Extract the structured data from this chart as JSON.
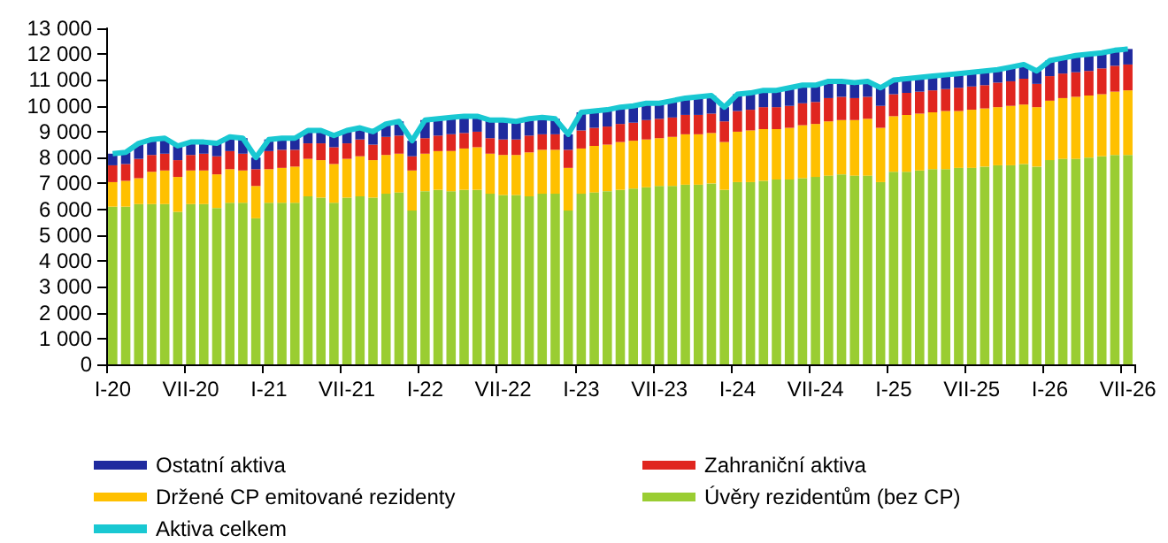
{
  "chart_data": {
    "type": "bar",
    "stacked": true,
    "grid": false,
    "legend": "bottom",
    "categories": [
      "I-20",
      null,
      null,
      null,
      null,
      null,
      "VII-20",
      null,
      null,
      null,
      null,
      null,
      "I-21",
      null,
      null,
      null,
      null,
      null,
      "VII-21",
      null,
      null,
      null,
      null,
      null,
      "I-22",
      null,
      null,
      null,
      null,
      null,
      "VII-22",
      null,
      null,
      null,
      null,
      null,
      "I-23",
      null,
      null,
      null,
      null,
      null,
      "VII-23",
      null,
      null,
      null,
      null,
      null,
      "I-24",
      null,
      null,
      null,
      null,
      null,
      "VII-24",
      null,
      null,
      null,
      null,
      null,
      "I-25",
      null,
      null,
      null,
      null,
      null,
      "VII-25",
      null,
      null,
      null,
      null,
      null,
      "I-26",
      null,
      null,
      null,
      null,
      null,
      "VII-26"
    ],
    "ylim": [
      0,
      13000
    ],
    "yticks": [
      0,
      {
        "value": 1000,
        "label": "1 000"
      },
      {
        "value": 2000,
        "label": "2 000"
      },
      {
        "value": 3000,
        "label": "3 000"
      },
      {
        "value": 4000,
        "label": "4 000"
      },
      {
        "value": 5000,
        "label": "5 000"
      },
      {
        "value": 6000,
        "label": "6 000"
      },
      {
        "value": 7000,
        "label": "7 000"
      },
      {
        "value": 8000,
        "label": "8 000"
      },
      {
        "value": 9000,
        "label": "9 000"
      },
      {
        "value": 10000,
        "label": "10 000"
      },
      {
        "value": 11000,
        "label": "11 000"
      },
      {
        "value": 12000,
        "label": "12 000"
      },
      {
        "value": 13000,
        "label": "13 000"
      }
    ],
    "series": [
      {
        "name": "Úvěry rezidentům (bez CP)",
        "color": "#9acd32",
        "values": [
          6100,
          6100,
          6200,
          6200,
          6200,
          5900,
          6200,
          6200,
          6050,
          6250,
          6250,
          5650,
          6250,
          6250,
          6250,
          6500,
          6450,
          6250,
          6450,
          6500,
          6450,
          6600,
          6650,
          5950,
          6700,
          6750,
          6700,
          6750,
          6750,
          6600,
          6550,
          6550,
          6500,
          6600,
          6600,
          5950,
          6600,
          6650,
          6700,
          6750,
          6800,
          6850,
          6900,
          6900,
          6950,
          6950,
          7000,
          6750,
          7050,
          7050,
          7100,
          7150,
          7150,
          7200,
          7250,
          7300,
          7350,
          7300,
          7300,
          7050,
          7450,
          7450,
          7500,
          7550,
          7550,
          7600,
          7600,
          7650,
          7700,
          7700,
          7750,
          7650,
          7900,
          7950,
          7950,
          8000,
          8050,
          8100,
          8100
        ]
      },
      {
        "name": "Držené CP emitované rezidenty",
        "color": "#ffc000",
        "values": [
          950,
          1000,
          1000,
          1250,
          1300,
          1350,
          1300,
          1300,
          1300,
          1300,
          1250,
          1250,
          1300,
          1350,
          1400,
          1450,
          1450,
          1500,
          1500,
          1550,
          1450,
          1500,
          1500,
          1550,
          1450,
          1500,
          1550,
          1600,
          1650,
          1550,
          1550,
          1550,
          1700,
          1700,
          1700,
          1650,
          1750,
          1800,
          1800,
          1850,
          1850,
          1850,
          1850,
          1900,
          1950,
          1950,
          1950,
          1850,
          1950,
          2000,
          2000,
          1950,
          2000,
          2050,
          2050,
          2100,
          2100,
          2150,
          2200,
          2100,
          2150,
          2200,
          2200,
          2200,
          2250,
          2200,
          2250,
          2250,
          2250,
          2300,
          2300,
          2300,
          2300,
          2350,
          2400,
          2400,
          2400,
          2450,
          2500
        ]
      },
      {
        "name": "Zahraniční aktiva",
        "color": "#e0261f",
        "values": [
          650,
          650,
          750,
          650,
          650,
          650,
          600,
          650,
          700,
          700,
          650,
          650,
          700,
          700,
          650,
          600,
          650,
          650,
          600,
          650,
          600,
          700,
          700,
          550,
          600,
          600,
          650,
          600,
          600,
          600,
          600,
          600,
          650,
          600,
          600,
          700,
          700,
          700,
          700,
          700,
          700,
          750,
          750,
          750,
          750,
          750,
          750,
          800,
          800,
          800,
          850,
          850,
          850,
          850,
          850,
          900,
          900,
          850,
          850,
          850,
          850,
          850,
          850,
          850,
          850,
          900,
          900,
          900,
          950,
          950,
          1000,
          900,
          950,
          950,
          950,
          950,
          1000,
          1000,
          1000
        ]
      },
      {
        "name": "Ostatní aktiva",
        "color": "#1f2a9e",
        "values": [
          450,
          450,
          600,
          600,
          600,
          550,
          500,
          450,
          500,
          550,
          600,
          450,
          450,
          450,
          450,
          500,
          500,
          450,
          500,
          450,
          500,
          500,
          550,
          600,
          700,
          650,
          650,
          650,
          600,
          700,
          750,
          700,
          650,
          650,
          600,
          600,
          700,
          650,
          650,
          650,
          650,
          650,
          600,
          650,
          650,
          700,
          700,
          550,
          650,
          650,
          650,
          650,
          700,
          700,
          650,
          650,
          600,
          600,
          600,
          700,
          550,
          550,
          550,
          550,
          550,
          550,
          550,
          550,
          500,
          550,
          550,
          500,
          600,
          600,
          650,
          650,
          600,
          600,
          600
        ]
      },
      {
        "name": "Aktiva celkem",
        "type": "line",
        "color": "#19c8d2",
        "marker": "none",
        "values": [
          8150,
          8200,
          8550,
          8700,
          8750,
          8450,
          8600,
          8600,
          8550,
          8800,
          8750,
          8000,
          8700,
          8750,
          8750,
          9050,
          9050,
          8850,
          9050,
          9150,
          9000,
          9300,
          9400,
          8650,
          9450,
          9500,
          9550,
          9600,
          9600,
          9450,
          9450,
          9400,
          9500,
          9550,
          9500,
          8900,
          9750,
          9800,
          9850,
          9950,
          10000,
          10100,
          10100,
          10200,
          10300,
          10350,
          10400,
          9950,
          10450,
          10500,
          10600,
          10600,
          10700,
          10800,
          10800,
          10950,
          10950,
          10900,
          10950,
          10700,
          11000,
          11050,
          11100,
          11150,
          11200,
          11250,
          11300,
          11350,
          11400,
          11500,
          11600,
          11350,
          11750,
          11850,
          11950,
          12000,
          12050,
          12150,
          12200
        ]
      }
    ]
  }
}
